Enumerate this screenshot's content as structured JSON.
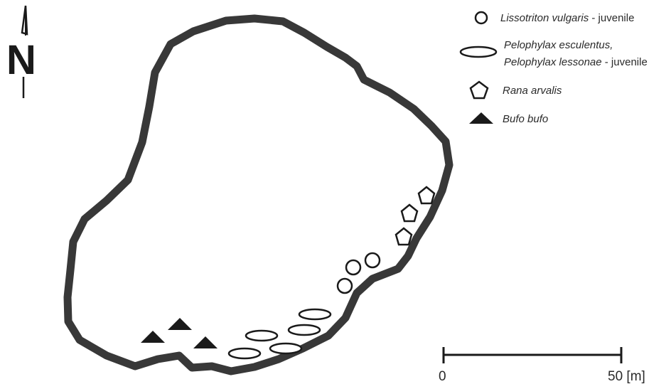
{
  "north_arrow": {
    "letter": "N",
    "icon": "north-arrow-icon"
  },
  "legend": {
    "items": [
      {
        "symbol": "circle",
        "italic_text": "Lissotriton vulgaris",
        "suffix": " - juvenile"
      },
      {
        "symbol": "ellipse",
        "italic_text": "Pelophylax esculentus,",
        "line2_italic": "Pelophylax lessonae",
        "suffix": " - juvenile"
      },
      {
        "symbol": "pentagon",
        "italic_text": "Rana arvalis",
        "suffix": ""
      },
      {
        "symbol": "triangle",
        "italic_text": "Bufo bufo",
        "suffix": ""
      }
    ]
  },
  "scale_bar": {
    "start_label": "0",
    "end_label": "50 [m]"
  },
  "colors": {
    "outline": "#383838",
    "symbol_stroke": "#1a1a1a",
    "triangle_fill": "#1a1a1a"
  }
}
